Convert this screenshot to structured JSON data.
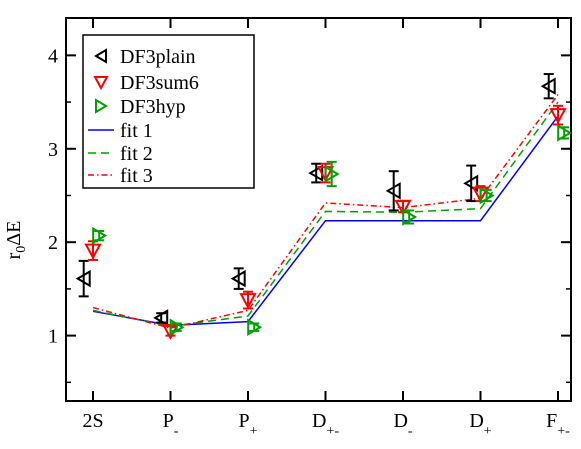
{
  "chart_data": {
    "type": "scatter",
    "title": "",
    "xlabel": "",
    "ylabel": {
      "main": "r",
      "sub": "0",
      "rest": "ΔE"
    },
    "ylim": [
      0.3,
      4.4
    ],
    "yticks": [
      "1",
      "2",
      "3",
      "4"
    ],
    "categories": [
      {
        "main": "2S",
        "sub": ""
      },
      {
        "main": "P",
        "sub": "-"
      },
      {
        "main": "P",
        "sub": "+"
      },
      {
        "main": "D",
        "sub": "+-"
      },
      {
        "main": "D",
        "sub": "-"
      },
      {
        "main": "D",
        "sub": "+"
      },
      {
        "main": "F",
        "sub": "+-"
      }
    ],
    "series": [
      {
        "name": "DF3plain",
        "kind": "marker",
        "marker": "triangle-left",
        "color": "#000000",
        "offset": -0.12,
        "values": [
          1.61,
          1.19,
          1.61,
          2.74,
          2.55,
          2.63,
          3.67
        ],
        "errors": [
          0.19,
          0.05,
          0.11,
          0.1,
          0.21,
          0.19,
          0.13
        ]
      },
      {
        "name": "DF3sum6",
        "kind": "marker",
        "marker": "triangle-down",
        "color": "#ff0000",
        "offset": 0.0,
        "values": [
          1.91,
          1.05,
          1.38,
          2.74,
          2.38,
          2.52,
          3.36
        ],
        "errors": [
          0.1,
          0.05,
          0.09,
          0.1,
          0.06,
          0.08,
          0.1
        ]
      },
      {
        "name": "DF3hyp",
        "kind": "marker",
        "marker": "triangle-right",
        "color": "#00a000",
        "offset": 0.08,
        "values": [
          2.07,
          1.09,
          1.09,
          2.73,
          2.27,
          2.5,
          3.17
        ],
        "errors": [
          0.05,
          0.04,
          0.04,
          0.13,
          0.07,
          0.06,
          0.06
        ]
      },
      {
        "name": "fit 1",
        "kind": "line",
        "dash": "",
        "color": "#0000ff",
        "values": [
          1.26,
          1.11,
          1.15,
          2.23,
          2.23,
          2.23,
          3.35
        ]
      },
      {
        "name": "fit 2",
        "kind": "line",
        "dash": "8,5",
        "color": "#00a000",
        "values": [
          1.27,
          1.1,
          1.21,
          2.33,
          2.32,
          2.36,
          3.5
        ]
      },
      {
        "name": "fit 3",
        "kind": "line",
        "dash": "6,3,1.5,3",
        "color": "#ff0000",
        "values": [
          1.3,
          1.08,
          1.27,
          2.42,
          2.37,
          2.47,
          3.58
        ]
      }
    ],
    "legend": "top-left"
  }
}
